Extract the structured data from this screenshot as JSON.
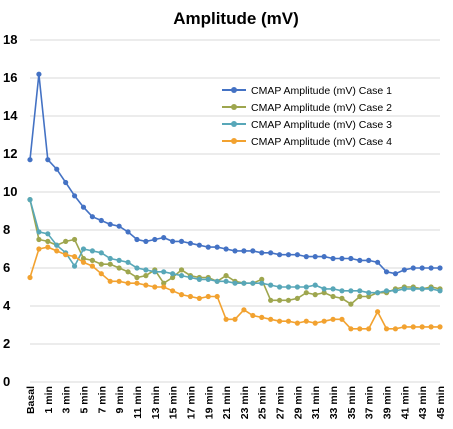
{
  "chart_data": {
    "type": "line",
    "title": "Amplitude (mV)",
    "xlabel": "",
    "ylabel": "",
    "ylim": [
      0,
      18
    ],
    "yticks": [
      "0",
      "2",
      "4",
      "6",
      "8",
      "10",
      "12",
      "14",
      "16",
      "18"
    ],
    "grid": true,
    "legend_position": "top-right",
    "categories": [
      "Basal",
      "",
      "1 min",
      "",
      "3 min",
      "",
      "5 min",
      "",
      "7 min",
      "",
      "9 min",
      "",
      "11 min",
      "",
      "13 min",
      "",
      "15 min",
      "",
      "17 min",
      "",
      "19 min",
      "",
      "21 min",
      "",
      "23 min",
      "",
      "25 min",
      "",
      "27 min",
      "",
      "29 min",
      "",
      "31 min",
      "",
      "33 min",
      "",
      "35 min",
      "",
      "37 min",
      "",
      "39 min",
      "",
      "41 min",
      "",
      "43 min",
      "",
      "45 min"
    ],
    "series": [
      {
        "name": "CMAP Amplitude (mV) Case 1",
        "color": "#4472c4",
        "values": [
          11.7,
          16.2,
          11.7,
          11.2,
          10.5,
          9.8,
          9.2,
          8.7,
          8.5,
          8.3,
          8.2,
          7.9,
          7.5,
          7.4,
          7.5,
          7.6,
          7.4,
          7.4,
          7.3,
          7.2,
          7.1,
          7.1,
          7.0,
          6.9,
          6.9,
          6.9,
          6.8,
          6.8,
          6.7,
          6.7,
          6.7,
          6.6,
          6.6,
          6.6,
          6.5,
          6.5,
          6.5,
          6.4,
          6.4,
          6.3,
          5.8,
          5.7,
          5.9,
          6.0,
          6.0,
          6.0,
          6.0
        ]
      },
      {
        "name": "CMAP Amplitude (mV) Case 2",
        "color": "#9ea64e",
        "values": [
          9.6,
          7.5,
          7.4,
          7.2,
          7.4,
          7.5,
          6.5,
          6.4,
          6.2,
          6.2,
          6.0,
          5.8,
          5.5,
          5.6,
          5.9,
          5.2,
          5.5,
          5.9,
          5.6,
          5.5,
          5.5,
          5.3,
          5.6,
          5.3,
          5.2,
          5.2,
          5.4,
          4.3,
          4.3,
          4.3,
          4.4,
          4.7,
          4.6,
          4.7,
          4.5,
          4.4,
          4.1,
          4.5,
          4.5,
          4.7,
          4.7,
          4.9,
          5.0,
          5.0,
          4.9,
          5.0,
          4.9
        ]
      },
      {
        "name": "CMAP Amplitude (mV) Case 3",
        "color": "#58a7b8",
        "values": [
          9.6,
          7.9,
          7.8,
          7.2,
          6.8,
          6.1,
          7.0,
          6.9,
          6.8,
          6.5,
          6.4,
          6.3,
          6.0,
          5.9,
          5.8,
          5.8,
          5.7,
          5.6,
          5.5,
          5.4,
          5.4,
          5.3,
          5.3,
          5.2,
          5.2,
          5.2,
          5.2,
          5.1,
          5.0,
          5.0,
          5.0,
          5.0,
          5.1,
          4.9,
          4.9,
          4.8,
          4.8,
          4.8,
          4.7,
          4.7,
          4.8,
          4.8,
          4.9,
          4.9,
          4.9,
          4.9,
          4.8
        ]
      },
      {
        "name": "CMAP Amplitude (mV) Case 4",
        "color": "#f2a230",
        "values": [
          5.5,
          7.0,
          7.1,
          6.9,
          6.7,
          6.6,
          6.3,
          6.1,
          5.7,
          5.3,
          5.3,
          5.2,
          5.2,
          5.1,
          5.0,
          5.0,
          4.8,
          4.6,
          4.5,
          4.4,
          4.5,
          4.5,
          3.3,
          3.3,
          3.8,
          3.5,
          3.4,
          3.3,
          3.2,
          3.2,
          3.1,
          3.2,
          3.1,
          3.2,
          3.3,
          3.3,
          2.8,
          2.8,
          2.8,
          3.7,
          2.8,
          2.8,
          2.9,
          2.9,
          2.9,
          2.9,
          2.9
        ]
      }
    ]
  }
}
